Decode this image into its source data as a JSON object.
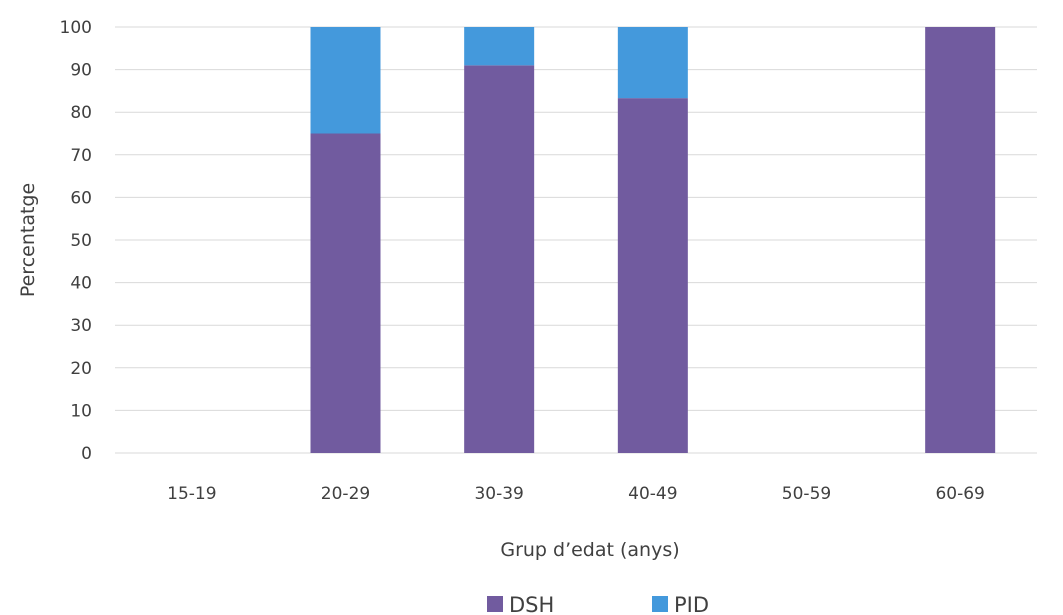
{
  "chart_data": {
    "type": "bar",
    "stacked": true,
    "title": "",
    "xlabel": "Grup d’edat (anys)",
    "ylabel": "Percentatge",
    "categories": [
      "15-19",
      "20-29",
      "30-39",
      "40-49",
      "50-59",
      "60-69"
    ],
    "series": [
      {
        "name": "DSH",
        "color": "#715b9f",
        "values": [
          0,
          75,
          91,
          83.3,
          0,
          100
        ]
      },
      {
        "name": "PID",
        "color": "#4499dc",
        "values": [
          0,
          25,
          9,
          16.7,
          0,
          0
        ]
      }
    ],
    "ylim": [
      0,
      100
    ],
    "yticks": [
      0,
      10,
      20,
      30,
      40,
      50,
      60,
      70,
      80,
      90,
      100
    ],
    "grid": true,
    "legend": "bottom-center"
  }
}
